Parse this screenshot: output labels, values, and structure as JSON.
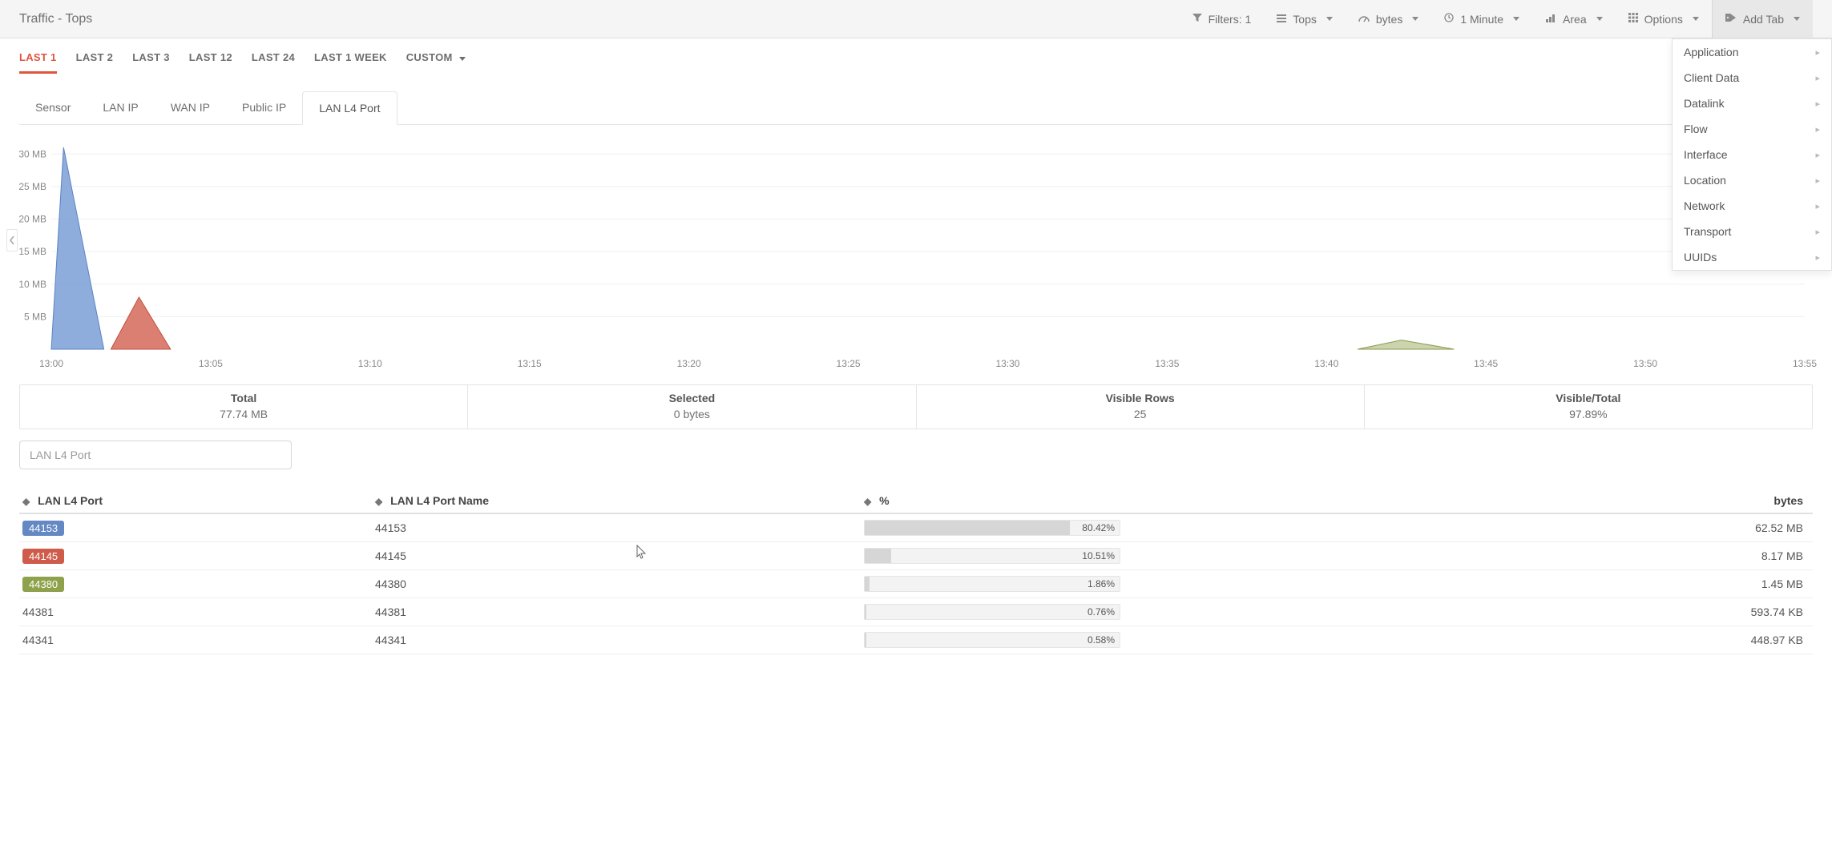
{
  "header": {
    "title": "Traffic - Tops",
    "controls": {
      "filters": {
        "label": "Filters: 1"
      },
      "tops": {
        "label": "Tops"
      },
      "bytes": {
        "label": "bytes"
      },
      "interval": {
        "label": "1 Minute"
      },
      "area": {
        "label": "Area"
      },
      "options": {
        "label": "Options"
      },
      "addtab": {
        "label": "Add Tab"
      }
    }
  },
  "addtab_menu": {
    "items": [
      "Application",
      "Client Data",
      "Datalink",
      "Flow",
      "Interface",
      "Location",
      "Network",
      "Transport",
      "UUIDs"
    ]
  },
  "timerange": {
    "items": [
      {
        "label": "LAST 1",
        "active": true
      },
      {
        "label": "LAST 2",
        "active": false
      },
      {
        "label": "LAST 3",
        "active": false
      },
      {
        "label": "LAST 12",
        "active": false
      },
      {
        "label": "LAST 24",
        "active": false
      },
      {
        "label": "LAST 1 WEEK",
        "active": false
      },
      {
        "label": "CUSTOM",
        "active": false,
        "caret": true
      }
    ]
  },
  "subtabs": {
    "items": [
      {
        "label": "Sensor",
        "active": false
      },
      {
        "label": "LAN IP",
        "active": false
      },
      {
        "label": "WAN IP",
        "active": false
      },
      {
        "label": "Public IP",
        "active": false
      },
      {
        "label": "LAN L4 Port",
        "active": true
      }
    ]
  },
  "chart": {
    "type": "area",
    "background_color": "#ffffff",
    "grid_color": "#efefef",
    "axis_label_color": "#888888",
    "axis_label_fontsize": 12,
    "y": {
      "unit": "MB",
      "ticks": [
        5,
        10,
        15,
        20,
        25,
        30
      ],
      "max": 32
    },
    "x": {
      "ticks": [
        "13:00",
        "13:05",
        "13:10",
        "13:15",
        "13:20",
        "13:25",
        "13:30",
        "13:35",
        "13:40",
        "13:45",
        "13:50",
        "13:55"
      ]
    },
    "series": [
      {
        "name": "44153",
        "color_fill": "#7a9ed6",
        "color_stroke": "#5a84c2",
        "points": [
          [
            0.0,
            0
          ],
          [
            0.007,
            31
          ],
          [
            0.03,
            0
          ]
        ]
      },
      {
        "name": "44145",
        "color_fill": "#d6685a",
        "color_stroke": "#c2503f",
        "points": [
          [
            0.034,
            0
          ],
          [
            0.05,
            8
          ],
          [
            0.068,
            0
          ]
        ]
      },
      {
        "name": "44380",
        "color_fill": "#a3b06c",
        "color_stroke": "#8a9a4f",
        "points": [
          [
            0.745,
            0
          ],
          [
            0.77,
            1.4
          ],
          [
            0.8,
            0
          ]
        ]
      }
    ]
  },
  "summary": {
    "cells": [
      {
        "label": "Total",
        "value": "77.74 MB"
      },
      {
        "label": "Selected",
        "value": "0 bytes"
      },
      {
        "label": "Visible Rows",
        "value": "25"
      },
      {
        "label": "Visible/Total",
        "value": "97.89%"
      }
    ]
  },
  "filter": {
    "placeholder": "LAN L4 Port"
  },
  "table": {
    "columns": {
      "port": {
        "label": "LAN L4 Port",
        "sortable": true
      },
      "name": {
        "label": "LAN L4 Port Name",
        "sortable": true
      },
      "pct": {
        "label": "%",
        "sortable": true
      },
      "bytes": {
        "label": "bytes",
        "sortable": false
      }
    },
    "rows": [
      {
        "port": "44153",
        "badge": "blue",
        "name": "44153",
        "pct": 80.42,
        "pct_label": "80.42%",
        "bytes": "62.52 MB"
      },
      {
        "port": "44145",
        "badge": "red",
        "name": "44145",
        "pct": 10.51,
        "pct_label": "10.51%",
        "bytes": "8.17 MB"
      },
      {
        "port": "44380",
        "badge": "olive",
        "name": "44380",
        "pct": 1.86,
        "pct_label": "1.86%",
        "bytes": "1.45 MB"
      },
      {
        "port": "44381",
        "badge": null,
        "name": "44381",
        "pct": 0.76,
        "pct_label": "0.76%",
        "bytes": "593.74 KB"
      },
      {
        "port": "44341",
        "badge": null,
        "name": "44341",
        "pct": 0.58,
        "pct_label": "0.58%",
        "bytes": "448.97 KB"
      }
    ]
  },
  "colors": {
    "accent_active": "#e0543e",
    "badge_blue": "#6488c3",
    "badge_red": "#cf5b4b",
    "badge_olive": "#8da24b",
    "bar_fill": "#d6d6d6",
    "bar_track": "#f3f3f3"
  }
}
